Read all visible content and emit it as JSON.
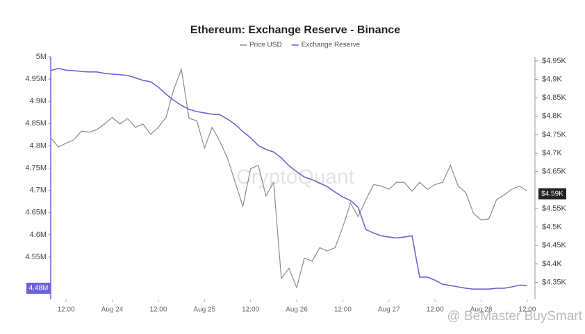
{
  "chart_data": {
    "type": "line",
    "title": "Ethereum: Exchange Reserve - Binance",
    "watermark": "CryptoQuant",
    "credit": "@ BeMaster BuySmart",
    "xlim": [
      0,
      63
    ],
    "xticks": [
      {
        "value": 2,
        "label": "12:00"
      },
      {
        "value": 8,
        "label": "Aug 24"
      },
      {
        "value": 14,
        "label": "12:00"
      },
      {
        "value": 20,
        "label": "Aug 25"
      },
      {
        "value": 26,
        "label": "12:00"
      },
      {
        "value": 32,
        "label": "Aug 26"
      },
      {
        "value": 38,
        "label": "12:00"
      },
      {
        "value": 44,
        "label": "Aug 27"
      },
      {
        "value": 50,
        "label": "12:00"
      },
      {
        "value": 56,
        "label": "Aug 28"
      },
      {
        "value": 62,
        "label": "12:00"
      }
    ],
    "ylim": [
      4.455,
      5
    ],
    "yticks": [
      {
        "value": 5,
        "label": "5M"
      },
      {
        "value": 4.95,
        "label": "4.95M"
      },
      {
        "value": 4.9,
        "label": "4.9M"
      },
      {
        "value": 4.85,
        "label": "4.85M"
      },
      {
        "value": 4.8,
        "label": "4.8M"
      },
      {
        "value": 4.75,
        "label": "4.75M"
      },
      {
        "value": 4.7,
        "label": "4.7M"
      },
      {
        "value": 4.65,
        "label": "4.65M"
      },
      {
        "value": 4.6,
        "label": "4.6M"
      },
      {
        "value": 4.55,
        "label": "4.55M"
      }
    ],
    "y2lim": [
      4304,
      4961
    ],
    "y2ticks": [
      {
        "value": 4950,
        "label": "$4.95K"
      },
      {
        "value": 4900,
        "label": "$4.9K"
      },
      {
        "value": 4850,
        "label": "$4.85K"
      },
      {
        "value": 4800,
        "label": "$4.8K"
      },
      {
        "value": 4750,
        "label": "$4.75K"
      },
      {
        "value": 4700,
        "label": "$4.7K"
      },
      {
        "value": 4650,
        "label": "$4.65K"
      },
      {
        "value": 4550,
        "label": "$4.55K"
      },
      {
        "value": 4500,
        "label": "$4.5K"
      },
      {
        "value": 4450,
        "label": "$4.45K"
      },
      {
        "value": 4400,
        "label": "$4.4K"
      },
      {
        "value": 4350,
        "label": "$4.35K"
      }
    ],
    "grid": false,
    "legend": "top",
    "series": [
      {
        "name": "Price USD",
        "color": "#8a8a8a",
        "axis": "y2",
        "values": [
          4742,
          4717,
          4727,
          4736,
          4760,
          4757,
          4764,
          4779,
          4797,
          4779,
          4794,
          4770,
          4779,
          4751,
          4770,
          4797,
          4872,
          4927,
          4794,
          4788,
          4714,
          4770,
          4732,
          4686,
          4621,
          4556,
          4658,
          4667,
          4584,
          4621,
          4361,
          4388,
          4336,
          4416,
          4407,
          4444,
          4435,
          4444,
          4500,
          4565,
          4528,
          4574,
          4615,
          4611,
          4602,
          4621,
          4621,
          4597,
          4621,
          4602,
          4615,
          4621,
          4667,
          4611,
          4593,
          4537,
          4519,
          4522,
          4574,
          4587,
          4602,
          4611,
          4597
        ]
      },
      {
        "name": "Exchange Reserve",
        "color": "#6c63d9",
        "axis": "y",
        "values": [
          4.969,
          4.974,
          4.97,
          4.969,
          4.967,
          4.966,
          4.966,
          4.963,
          4.961,
          4.96,
          4.958,
          4.953,
          4.947,
          4.944,
          4.932,
          4.916,
          4.902,
          4.891,
          4.882,
          4.877,
          4.874,
          4.871,
          4.87,
          4.86,
          4.848,
          4.832,
          4.818,
          4.801,
          4.792,
          4.786,
          4.773,
          4.755,
          4.742,
          4.73,
          4.724,
          4.716,
          4.708,
          4.696,
          4.685,
          4.677,
          4.662,
          4.612,
          4.604,
          4.598,
          4.595,
          4.593,
          4.595,
          4.598,
          4.505,
          4.505,
          4.498,
          4.489,
          4.486,
          4.483,
          4.48,
          4.478,
          4.478,
          4.478,
          4.48,
          4.48,
          4.483,
          4.487,
          4.486
        ]
      }
    ],
    "annotations": [
      {
        "label": "$4.59K",
        "value": 4590,
        "axis": "y2"
      },
      {
        "label": "4.48M",
        "value": 4.48,
        "axis": "y"
      }
    ]
  }
}
